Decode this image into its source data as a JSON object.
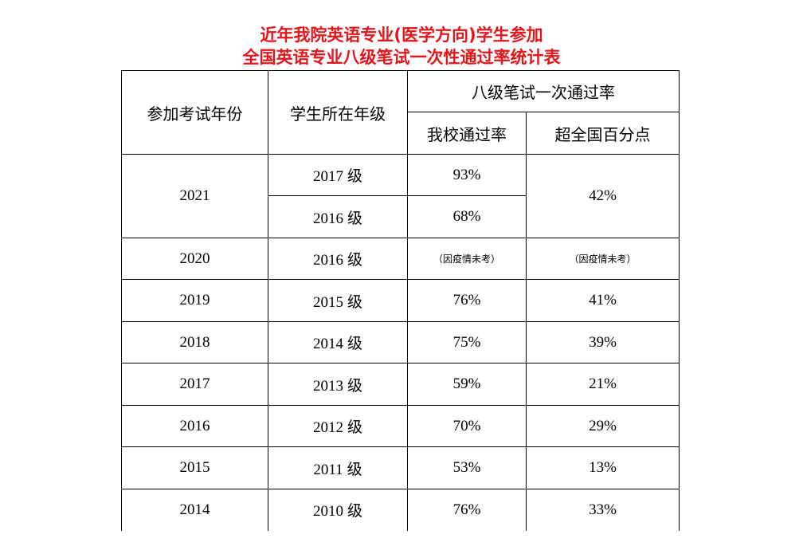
{
  "title": {
    "line1": "近年我院英语专业(医学方向)学生参加",
    "line2": "全国英语专业八级笔试一次性通过率统计表"
  },
  "table": {
    "headers": {
      "year": "参加考试年份",
      "grade": "学生所在年级",
      "pass_rate_group": "八级笔试一次通过率",
      "school_rate": "我校通过率",
      "above_national": "超全国百分点"
    },
    "rows": [
      {
        "year": "2021",
        "grade": "2017",
        "school_rate": "93%",
        "above_national": "42%"
      },
      {
        "grade": "2016",
        "school_rate": "68%"
      },
      {
        "year": "2020",
        "grade": "2016",
        "school_rate": "（因疫情未考）",
        "above_national": "（因疫情未考）"
      },
      {
        "year": "2019",
        "grade": "2015",
        "school_rate": "76%",
        "above_national": "41%"
      },
      {
        "year": "2018",
        "grade": "2014",
        "school_rate": "75%",
        "above_national": "39%"
      },
      {
        "year": "2017",
        "grade": "2013",
        "school_rate": "59%",
        "above_national": "21%"
      },
      {
        "year": "2016",
        "grade": "2012",
        "school_rate": "70%",
        "above_national": "29%"
      },
      {
        "year": "2015",
        "grade": "2011",
        "school_rate": "53%",
        "above_national": "13%"
      },
      {
        "year": "2014",
        "grade": "2010",
        "school_rate": "76%",
        "above_national": "33%"
      }
    ],
    "grade_suffix": "级"
  }
}
